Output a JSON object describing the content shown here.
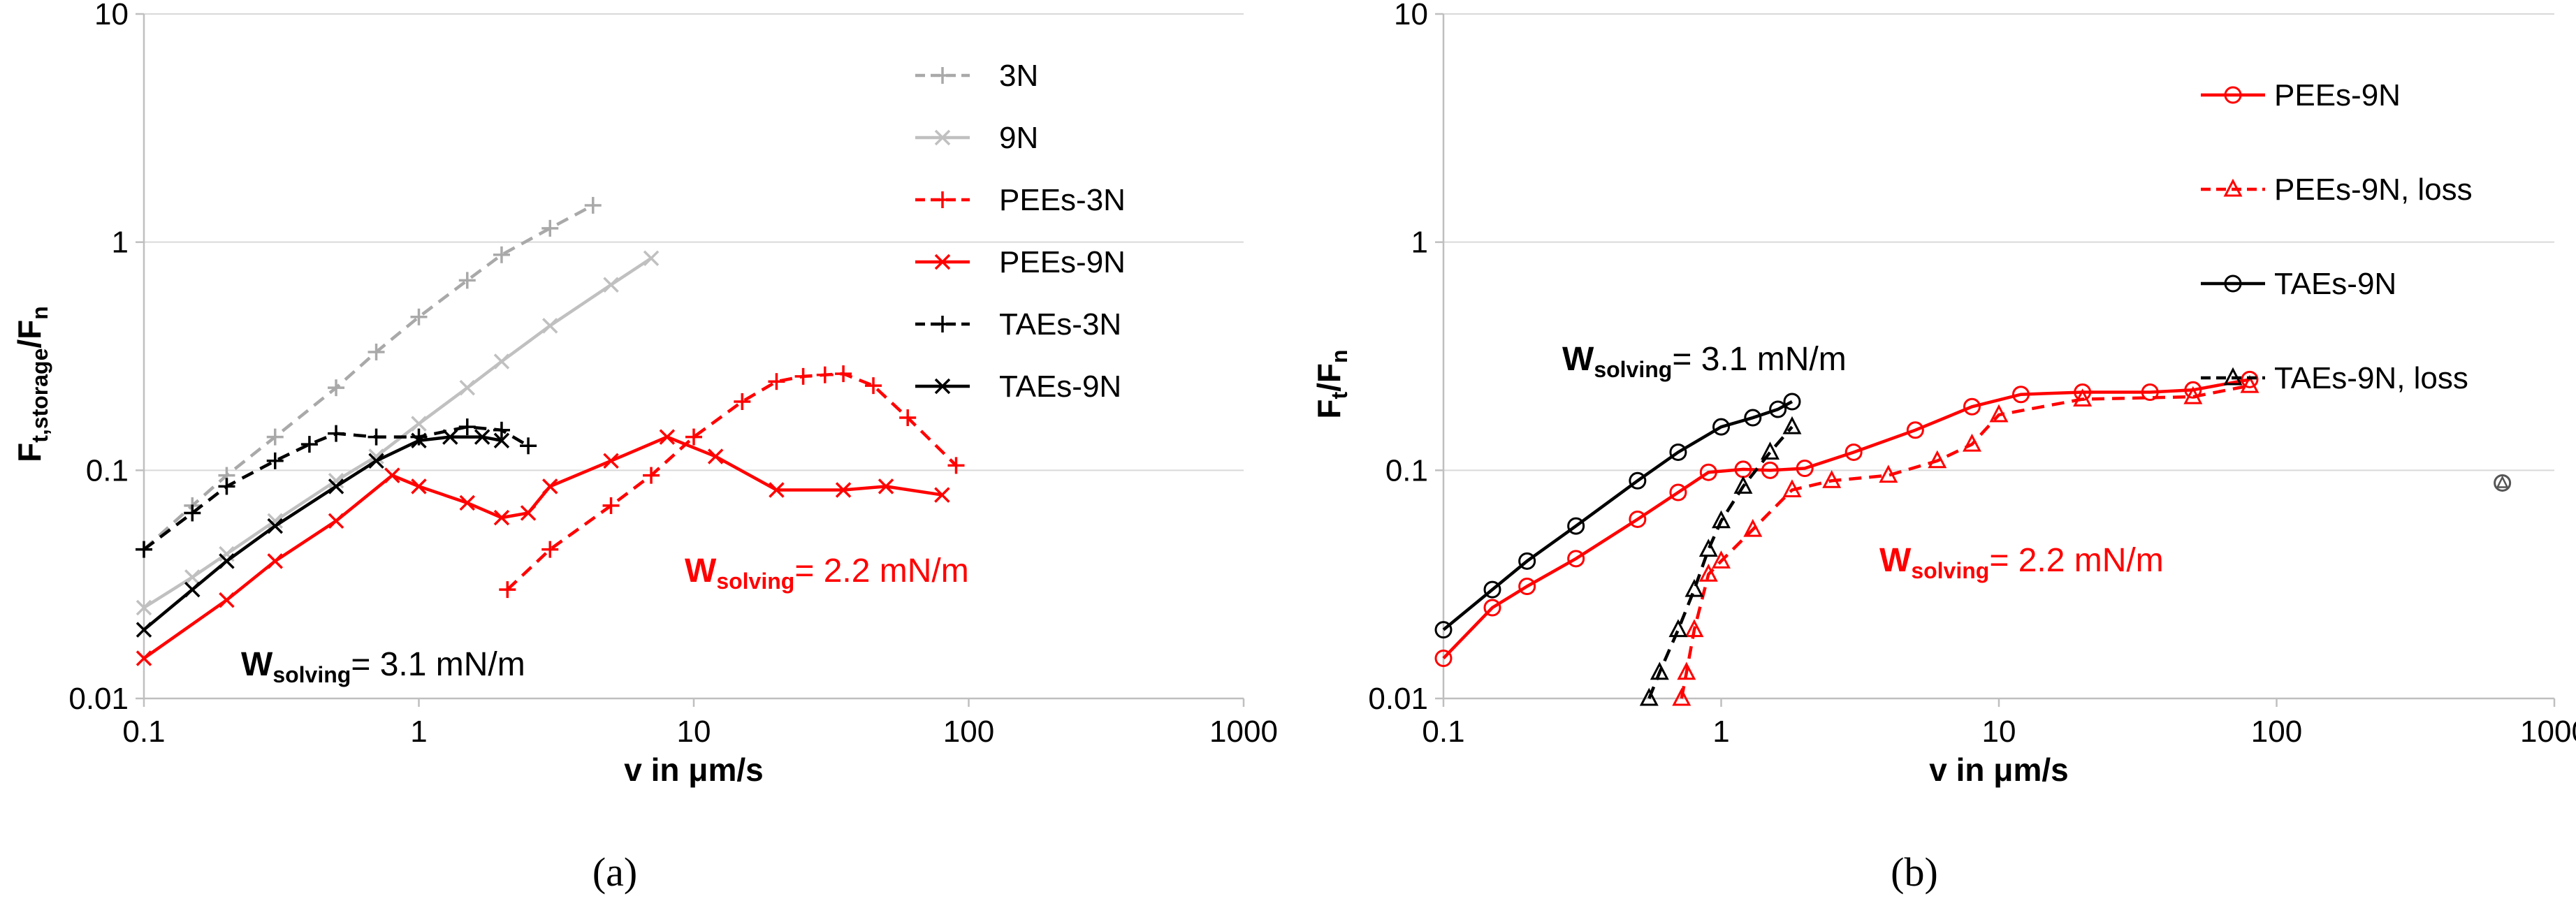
{
  "chart_data": [
    {
      "type": "line",
      "panel": "a",
      "caption": "(a)",
      "xlabel": "v in μm/s",
      "ylabel": {
        "main": "F",
        "sub": "t,storage",
        "tail": "/F",
        "sub2": "n"
      },
      "xscale": "log",
      "yscale": "log",
      "xlim": [
        0.1,
        1000
      ],
      "ylim": [
        0.01,
        10
      ],
      "x_ticks": [
        0.1,
        1,
        10,
        100,
        1000
      ],
      "x_tick_labels": [
        "0.1",
        "1",
        "10",
        "100",
        "1000"
      ],
      "y_ticks": [
        0.01,
        0.1,
        1,
        10
      ],
      "y_tick_labels": [
        "0.01",
        "0.1",
        "1",
        "10"
      ],
      "legend_position": "top-right",
      "series": [
        {
          "name": "3N",
          "color": "#a9a9a9",
          "dash": "dashed",
          "marker": "plus",
          "x": [
            0.1,
            0.15,
            0.2,
            0.3,
            0.5,
            0.7,
            1,
            1.5,
            2,
            3,
            4.3
          ],
          "y": [
            0.045,
            0.07,
            0.095,
            0.14,
            0.23,
            0.33,
            0.47,
            0.68,
            0.88,
            1.15,
            1.45
          ]
        },
        {
          "name": "9N",
          "color": "#c0c0c0",
          "dash": "solid",
          "marker": "x",
          "x": [
            0.1,
            0.15,
            0.2,
            0.3,
            0.5,
            0.7,
            1,
            1.5,
            2,
            3,
            5,
            7
          ],
          "y": [
            0.025,
            0.034,
            0.043,
            0.06,
            0.09,
            0.115,
            0.16,
            0.23,
            0.3,
            0.43,
            0.65,
            0.85
          ]
        },
        {
          "name": "PEEs-3N",
          "color": "#ff0000",
          "dash": "dashed",
          "marker": "plus",
          "x": [
            2.1,
            3,
            5,
            7,
            10,
            15,
            20,
            25,
            30,
            35,
            45,
            60,
            90
          ],
          "y": [
            0.03,
            0.045,
            0.07,
            0.095,
            0.14,
            0.2,
            0.245,
            0.258,
            0.262,
            0.265,
            0.235,
            0.17,
            0.105
          ]
        },
        {
          "name": "PEEs-9N",
          "color": "#ff0000",
          "dash": "solid",
          "marker": "x",
          "x": [
            0.1,
            0.2,
            0.3,
            0.5,
            0.8,
            1,
            1.5,
            2,
            2.5,
            3,
            5,
            8,
            12,
            20,
            35,
            50,
            80
          ],
          "y": [
            0.015,
            0.027,
            0.04,
            0.06,
            0.095,
            0.085,
            0.072,
            0.062,
            0.065,
            0.085,
            0.11,
            0.14,
            0.115,
            0.082,
            0.082,
            0.085,
            0.078
          ]
        },
        {
          "name": "TAEs-3N",
          "color": "#000000",
          "dash": "dashed",
          "marker": "plus",
          "x": [
            0.1,
            0.15,
            0.2,
            0.3,
            0.4,
            0.5,
            0.7,
            1,
            1.5,
            2,
            2.5
          ],
          "y": [
            0.045,
            0.065,
            0.085,
            0.11,
            0.13,
            0.145,
            0.14,
            0.14,
            0.155,
            0.15,
            0.128
          ]
        },
        {
          "name": "TAEs-9N",
          "color": "#000000",
          "dash": "solid",
          "marker": "x",
          "x": [
            0.1,
            0.15,
            0.2,
            0.3,
            0.5,
            0.7,
            1,
            1.3,
            1.7,
            2
          ],
          "y": [
            0.02,
            0.03,
            0.04,
            0.057,
            0.085,
            0.11,
            0.135,
            0.14,
            0.14,
            0.135
          ]
        }
      ],
      "annotations": [
        {
          "name": "w-solving-pees-a",
          "main": "W",
          "sub": "solving",
          "text": "= 2.2 mN/m",
          "color": "#ff0000",
          "x": 9.5,
          "y": 0.0455
        },
        {
          "name": "w-solving-taes-a",
          "main": "W",
          "sub": "solving",
          "text": "= 3.1 mN/m",
          "color": "#000000",
          "x": 0.11,
          "y": 0.0142
        }
      ]
    },
    {
      "type": "line",
      "panel": "b",
      "caption": "(b)",
      "xlabel": "v in μm/s",
      "ylabel": {
        "main": "F",
        "sub": "t",
        "tail": "/F",
        "sub2": "n"
      },
      "xscale": "log",
      "yscale": "log",
      "xlim": [
        0.1,
        1000
      ],
      "ylim": [
        0.01,
        10
      ],
      "x_ticks": [
        0.1,
        1,
        10,
        100,
        1000
      ],
      "x_tick_labels": [
        "0.1",
        "1",
        "10",
        "100",
        "1000"
      ],
      "y_ticks": [
        0.01,
        0.1,
        1,
        10
      ],
      "y_tick_labels": [
        "0.01",
        "0.1",
        "1",
        "10"
      ],
      "legend_position": "top-right",
      "series": [
        {
          "name": "PEEs-9N",
          "color": "#ff0000",
          "dash": "solid",
          "marker": "circle",
          "x": [
            0.1,
            0.15,
            0.2,
            0.3,
            0.5,
            0.7,
            0.9,
            1.2,
            1.5,
            2,
            3,
            5,
            8,
            12,
            20,
            35,
            50,
            80
          ],
          "y": [
            0.015,
            0.025,
            0.031,
            0.041,
            0.061,
            0.08,
            0.098,
            0.101,
            0.1,
            0.102,
            0.12,
            0.15,
            0.19,
            0.215,
            0.22,
            0.22,
            0.225,
            0.25
          ]
        },
        {
          "name": "PEEs-9N, loss",
          "color": "#ff0000",
          "dash": "dashed",
          "marker": "triangle",
          "x": [
            0.72,
            0.75,
            0.8,
            0.9,
            1,
            1.3,
            1.8,
            2.5,
            4,
            6,
            8,
            10,
            20,
            50,
            80
          ],
          "y": [
            0.01,
            0.013,
            0.02,
            0.035,
            0.04,
            0.055,
            0.082,
            0.09,
            0.095,
            0.11,
            0.13,
            0.175,
            0.205,
            0.21,
            0.235
          ]
        },
        {
          "name": "TAEs-9N",
          "color": "#000000",
          "dash": "solid",
          "marker": "circle",
          "x": [
            0.1,
            0.15,
            0.2,
            0.3,
            0.5,
            0.7,
            1,
            1.3,
            1.6,
            1.8
          ],
          "y": [
            0.02,
            0.03,
            0.04,
            0.057,
            0.09,
            0.12,
            0.155,
            0.17,
            0.185,
            0.2
          ]
        },
        {
          "name": "TAEs-9N, loss",
          "color": "#000000",
          "dash": "dashed",
          "marker": "triangle",
          "x": [
            0.55,
            0.6,
            0.7,
            0.8,
            0.9,
            1,
            1.2,
            1.5,
            1.8
          ],
          "y": [
            0.01,
            0.013,
            0.02,
            0.03,
            0.045,
            0.06,
            0.085,
            0.12,
            0.155
          ]
        }
      ],
      "outliers": [
        {
          "name": "outlier-point",
          "x": 650,
          "y": 0.088,
          "color": "#555555"
        }
      ],
      "annotations": [
        {
          "name": "w-solving-pees-b",
          "main": "W",
          "sub": "solving",
          "text": "= 2.2 mN/m",
          "color": "#ff0000",
          "x": 2.8,
          "y": 0.0455
        },
        {
          "name": "w-solving-taes-b",
          "main": "W",
          "sub": "solving",
          "text": "= 3.1 mN/m",
          "color": "#000000",
          "x": 0.72,
          "y": 0.49
        }
      ]
    }
  ]
}
